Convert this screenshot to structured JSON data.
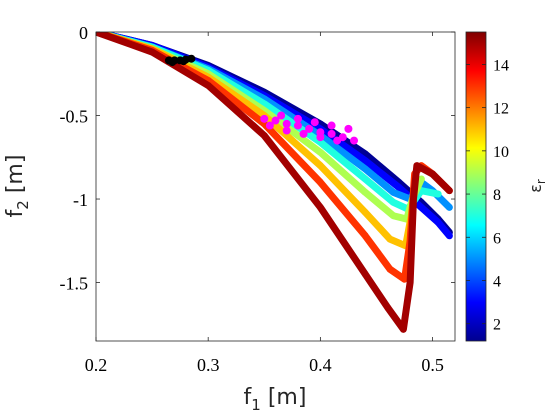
{
  "chart_data": {
    "type": "scatter",
    "title": "",
    "xlabel": "f",
    "xlabel_sub": "1",
    "xlabel_unit": "[m]",
    "ylabel": "f",
    "ylabel_sub": "2",
    "ylabel_unit": "[m]",
    "xlim": [
      0.2,
      0.52
    ],
    "ylim": [
      -1.85,
      0.0
    ],
    "xticks": [
      0.2,
      0.3,
      0.4,
      0.5
    ],
    "xtick_labels": [
      "0.2",
      "0.3",
      "0.4",
      "0.5"
    ],
    "yticks": [
      0,
      -0.5,
      -1,
      -1.5
    ],
    "ytick_labels": [
      "0",
      "-0.5",
      "-1",
      "-1.5"
    ],
    "grid": false,
    "colorbar": {
      "label": "ε",
      "label_sub": "r",
      "range": [
        1.2,
        15.5
      ],
      "ticks": [
        2,
        4,
        6,
        8,
        10,
        12,
        14
      ],
      "tick_labels": [
        "2",
        "4",
        "6",
        "8",
        "10",
        "12",
        "14"
      ],
      "colormap": "jet"
    },
    "series": [
      {
        "name": "",
        "color_by": "epsilon_r",
        "curves": [
          {
            "eps": 1.5,
            "points": [
              [
                0.2,
                0.0
              ],
              [
                0.25,
                -0.08
              ],
              [
                0.3,
                -0.2
              ],
              [
                0.35,
                -0.36
              ],
              [
                0.4,
                -0.55
              ],
              [
                0.44,
                -0.73
              ],
              [
                0.47,
                -0.9
              ],
              [
                0.49,
                -1.02
              ],
              [
                0.505,
                -1.12
              ],
              [
                0.515,
                -1.2
              ]
            ]
          },
          {
            "eps": 3.0,
            "points": [
              [
                0.2,
                0.0
              ],
              [
                0.25,
                -0.08
              ],
              [
                0.3,
                -0.21
              ],
              [
                0.35,
                -0.38
              ],
              [
                0.4,
                -0.58
              ],
              [
                0.44,
                -0.77
              ],
              [
                0.47,
                -0.93
              ],
              [
                0.49,
                -1.05
              ],
              [
                0.505,
                -1.14
              ],
              [
                0.515,
                -1.22
              ]
            ]
          },
          {
            "eps": 5.0,
            "points": [
              [
                0.2,
                0.0
              ],
              [
                0.25,
                -0.09
              ],
              [
                0.3,
                -0.22
              ],
              [
                0.35,
                -0.4
              ],
              [
                0.4,
                -0.62
              ],
              [
                0.44,
                -0.82
              ],
              [
                0.465,
                -0.96
              ],
              [
                0.48,
                -1.0
              ],
              [
                0.49,
                -0.9
              ],
              [
                0.5,
                -0.95
              ],
              [
                0.515,
                -1.05
              ]
            ]
          },
          {
            "eps": 7.0,
            "points": [
              [
                0.2,
                0.0
              ],
              [
                0.25,
                -0.09
              ],
              [
                0.3,
                -0.23
              ],
              [
                0.35,
                -0.43
              ],
              [
                0.4,
                -0.66
              ],
              [
                0.44,
                -0.88
              ],
              [
                0.465,
                -1.02
              ],
              [
                0.478,
                -1.06
              ],
              [
                0.49,
                -0.95
              ],
              [
                0.505,
                -0.97
              ]
            ]
          },
          {
            "eps": 9.0,
            "points": [
              [
                0.2,
                0.0
              ],
              [
                0.25,
                -0.1
              ],
              [
                0.3,
                -0.25
              ],
              [
                0.35,
                -0.47
              ],
              [
                0.4,
                -0.72
              ],
              [
                0.44,
                -0.96
              ],
              [
                0.465,
                -1.1
              ],
              [
                0.477,
                -1.12
              ],
              [
                0.482,
                -1.0
              ],
              [
                0.49,
                -0.88
              ]
            ]
          },
          {
            "eps": 11.0,
            "points": [
              [
                0.2,
                0.0
              ],
              [
                0.25,
                -0.1
              ],
              [
                0.3,
                -0.27
              ],
              [
                0.35,
                -0.5
              ],
              [
                0.4,
                -0.8
              ],
              [
                0.44,
                -1.08
              ],
              [
                0.462,
                -1.24
              ],
              [
                0.476,
                -1.28
              ],
              [
                0.481,
                -1.1
              ],
              [
                0.485,
                -0.85
              ]
            ]
          },
          {
            "eps": 13.0,
            "points": [
              [
                0.2,
                0.0
              ],
              [
                0.25,
                -0.11
              ],
              [
                0.3,
                -0.29
              ],
              [
                0.35,
                -0.55
              ],
              [
                0.4,
                -0.9
              ],
              [
                0.44,
                -1.22
              ],
              [
                0.462,
                -1.42
              ],
              [
                0.475,
                -1.48
              ],
              [
                0.48,
                -1.25
              ],
              [
                0.484,
                -0.85
              ],
              [
                0.49,
                -0.8
              ],
              [
                0.5,
                -0.85
              ],
              [
                0.515,
                -0.95
              ]
            ]
          },
          {
            "eps": 15.0,
            "points": [
              [
                0.2,
                0.0
              ],
              [
                0.25,
                -0.12
              ],
              [
                0.3,
                -0.32
              ],
              [
                0.35,
                -0.62
              ],
              [
                0.4,
                -1.05
              ],
              [
                0.44,
                -1.45
              ],
              [
                0.46,
                -1.65
              ],
              [
                0.474,
                -1.78
              ],
              [
                0.48,
                -1.5
              ],
              [
                0.483,
                -1.0
              ],
              [
                0.486,
                -0.8
              ],
              [
                0.5,
                -0.85
              ],
              [
                0.515,
                -0.95
              ]
            ]
          }
        ]
      },
      {
        "name": "",
        "color": "#ff00ff",
        "points": [
          [
            0.35,
            -0.52
          ],
          [
            0.36,
            -0.53
          ],
          [
            0.37,
            -0.55
          ],
          [
            0.38,
            -0.56
          ],
          [
            0.39,
            -0.58
          ],
          [
            0.4,
            -0.6
          ],
          [
            0.41,
            -0.61
          ],
          [
            0.42,
            -0.63
          ],
          [
            0.43,
            -0.65
          ],
          [
            0.355,
            -0.56
          ],
          [
            0.37,
            -0.59
          ],
          [
            0.385,
            -0.61
          ],
          [
            0.4,
            -0.63
          ],
          [
            0.415,
            -0.65
          ],
          [
            0.365,
            -0.5
          ],
          [
            0.38,
            -0.52
          ],
          [
            0.395,
            -0.54
          ],
          [
            0.41,
            -0.56
          ],
          [
            0.425,
            -0.58
          ]
        ]
      },
      {
        "name": "",
        "color": "#000000",
        "points": [
          [
            0.265,
            -0.17
          ],
          [
            0.27,
            -0.17
          ],
          [
            0.275,
            -0.17
          ],
          [
            0.28,
            -0.165
          ],
          [
            0.285,
            -0.16
          ],
          [
            0.268,
            -0.18
          ],
          [
            0.278,
            -0.175
          ]
        ]
      }
    ]
  }
}
